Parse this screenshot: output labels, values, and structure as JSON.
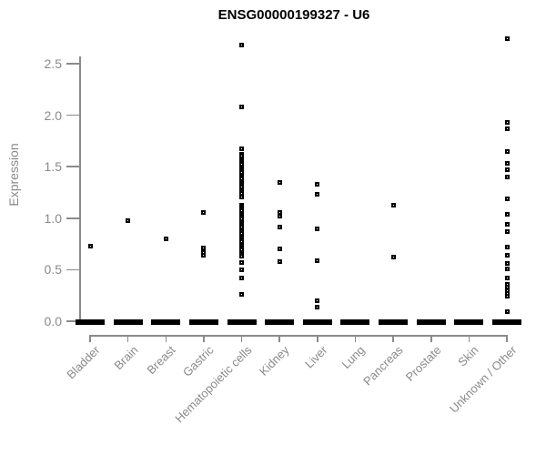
{
  "chart_data": {
    "type": "scatter",
    "title": "ENSG00000199327 - U6",
    "ylabel": "Expression",
    "xlabel": "",
    "grid": false,
    "legend": "none",
    "marker": "open-square",
    "ylim": [
      0,
      2.75
    ],
    "yticks": [
      0.0,
      0.5,
      1.0,
      1.5,
      2.0,
      2.5
    ],
    "ytick_labels": [
      "0.0",
      "0.5",
      "1.0",
      "1.5",
      "2.0",
      "2.5"
    ],
    "categories": [
      "Bladder",
      "Brain",
      "Breast",
      "Gastric",
      "Hematopoietic cells",
      "Kidney",
      "Liver",
      "Lung",
      "Pancreas",
      "Prostate",
      "Skin",
      "Unknown / Other"
    ],
    "series": [
      {
        "category": "Bladder",
        "zero_cluster": true,
        "values": [
          0.73
        ]
      },
      {
        "category": "Brain",
        "zero_cluster": true,
        "values": [
          0.98
        ]
      },
      {
        "category": "Breast",
        "zero_cluster": true,
        "values": [
          0.8
        ]
      },
      {
        "category": "Gastric",
        "zero_cluster": true,
        "values": [
          1.06,
          0.71,
          0.67,
          0.64
        ]
      },
      {
        "category": "Hematopoietic cells",
        "zero_cluster": true,
        "values": [
          2.68,
          2.08,
          1.67,
          1.62,
          1.6,
          1.58,
          1.56,
          1.54,
          1.52,
          1.5,
          1.48,
          1.46,
          1.44,
          1.42,
          1.4,
          1.38,
          1.36,
          1.34,
          1.32,
          1.3,
          1.28,
          1.26,
          1.24,
          1.21,
          1.13,
          1.11,
          1.09,
          1.07,
          1.05,
          1.03,
          1.01,
          0.99,
          0.97,
          0.95,
          0.93,
          0.91,
          0.89,
          0.87,
          0.85,
          0.83,
          0.81,
          0.79,
          0.77,
          0.75,
          0.73,
          0.71,
          0.69,
          0.67,
          0.65,
          0.63,
          0.57,
          0.5,
          0.42,
          0.26
        ]
      },
      {
        "category": "Kidney",
        "zero_cluster": true,
        "values": [
          1.35,
          1.06,
          1.02,
          0.91,
          0.7,
          0.58
        ]
      },
      {
        "category": "Liver",
        "zero_cluster": true,
        "values": [
          1.33,
          1.23,
          0.9,
          0.59,
          0.2,
          0.14
        ]
      },
      {
        "category": "Lung",
        "zero_cluster": true,
        "values": []
      },
      {
        "category": "Pancreas",
        "zero_cluster": true,
        "values": [
          1.13,
          0.62
        ]
      },
      {
        "category": "Prostate",
        "zero_cluster": true,
        "values": []
      },
      {
        "category": "Skin",
        "zero_cluster": true,
        "values": []
      },
      {
        "category": "Unknown / Other",
        "zero_cluster": true,
        "values": [
          2.74,
          1.93,
          1.87,
          1.65,
          1.53,
          1.47,
          1.4,
          1.19,
          1.04,
          0.94,
          0.87,
          0.72,
          0.64,
          0.56,
          0.51,
          0.42,
          0.36,
          0.33,
          0.3,
          0.27,
          0.24,
          0.09
        ]
      }
    ],
    "colors": {
      "points": "#000000",
      "axis": "#8a8a8a",
      "axis_text": "#8a8a8a",
      "title": "#000000",
      "background": "#ffffff"
    }
  }
}
